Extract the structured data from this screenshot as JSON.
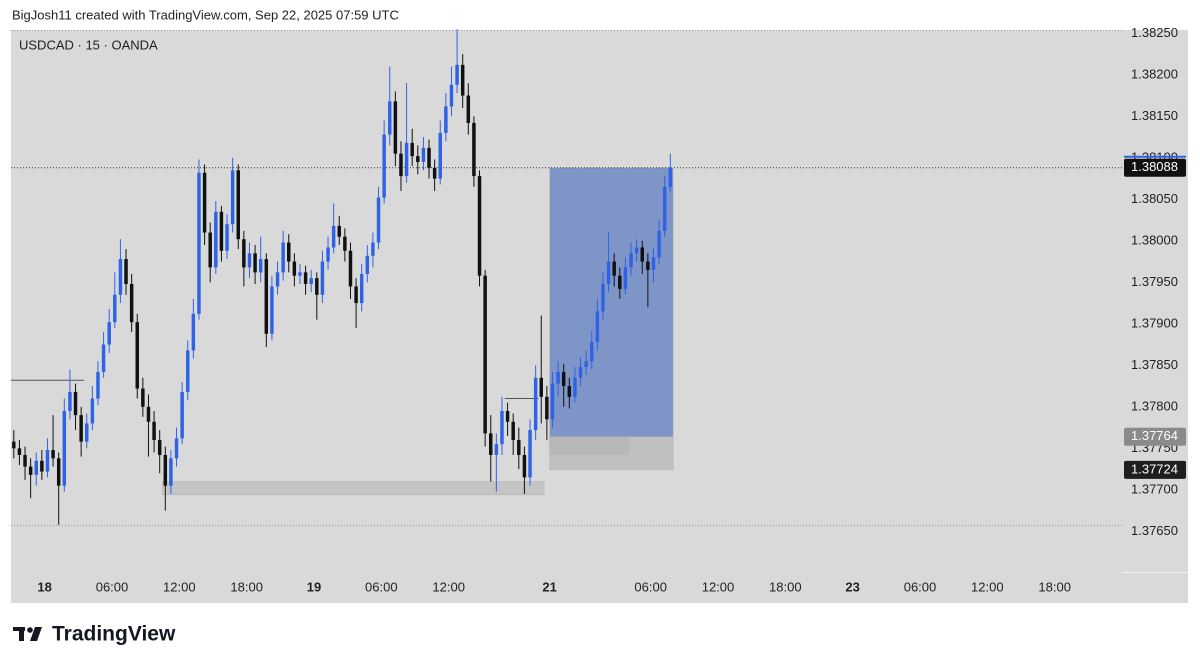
{
  "header": {
    "credit": "BigJosh11 created with TradingView.com, Sep 22, 2025 07:59 UTC"
  },
  "footer": {
    "brand": "TradingView"
  },
  "chart_data": {
    "type": "candlestick",
    "title": "USDCAD · 15 · OANDA",
    "up_color": "#2f63e6",
    "down_color": "#111111",
    "grid": false,
    "xlim": [
      0,
      198
    ],
    "ylim": [
      1.37601,
      1.38254
    ],
    "xticks": [
      {
        "value": 6,
        "label": "18"
      },
      {
        "value": 18,
        "label": "06:00"
      },
      {
        "value": 30,
        "label": "12:00"
      },
      {
        "value": 42,
        "label": "18:00"
      },
      {
        "value": 54,
        "label": "19"
      },
      {
        "value": 66,
        "label": "06:00"
      },
      {
        "value": 78,
        "label": "12:00"
      },
      {
        "value": 96,
        "label": "21"
      },
      {
        "value": 114,
        "label": "06:00"
      },
      {
        "value": 126,
        "label": "12:00"
      },
      {
        "value": 138,
        "label": "18:00"
      },
      {
        "value": 150,
        "label": "23"
      },
      {
        "value": 162,
        "label": "06:00"
      },
      {
        "value": 174,
        "label": "12:00"
      },
      {
        "value": 186,
        "label": "18:00"
      }
    ],
    "yticks": [
      {
        "value": 1.3825,
        "label": "1.38250"
      },
      {
        "value": 1.382,
        "label": "1.38200"
      },
      {
        "value": 1.3815,
        "label": "1.38150"
      },
      {
        "value": 1.381,
        "label": "1.38100"
      },
      {
        "value": 1.3805,
        "label": "1.38050"
      },
      {
        "value": 1.38,
        "label": "1.38000"
      },
      {
        "value": 1.3795,
        "label": "1.37950"
      },
      {
        "value": 1.379,
        "label": "1.37900"
      },
      {
        "value": 1.3785,
        "label": "1.37850"
      },
      {
        "value": 1.378,
        "label": "1.37800"
      },
      {
        "value": 1.3775,
        "label": "1.37750"
      },
      {
        "value": 1.377,
        "label": "1.37700"
      },
      {
        "value": 1.3765,
        "label": "1.37650"
      }
    ],
    "last_price": 1.38088,
    "levels": [
      {
        "value": 1.37764,
        "color": "#8a8a8a"
      },
      {
        "value": 1.37724,
        "color": "#1e1e1e"
      }
    ],
    "zones": [
      {
        "x": [
          27,
          95
        ],
        "y": [
          1.37694,
          1.3771
        ],
        "color": "#c4c4c4"
      },
      {
        "x": [
          96,
          118
        ],
        "y": [
          1.37724,
          1.37764
        ],
        "color": "#c0c0c0"
      },
      {
        "x": [
          96,
          110
        ],
        "y": [
          1.37743,
          1.37764
        ],
        "color": "#b8b8b8"
      },
      {
        "x": [
          96,
          118
        ],
        "y": [
          1.37764,
          1.38088
        ],
        "color": "#7f95c8"
      }
    ],
    "lines": [
      {
        "x": [
          0,
          13
        ],
        "y": 1.37832
      },
      {
        "x": [
          88,
          94
        ],
        "y": 1.3781
      }
    ],
    "ohlc": [
      [
        1.37758,
        1.37772,
        1.37738,
        1.3775
      ],
      [
        1.3775,
        1.3776,
        1.3773,
        1.37742
      ],
      [
        1.37742,
        1.37752,
        1.37712,
        1.37728
      ],
      [
        1.37728,
        1.37738,
        1.3769,
        1.37718
      ],
      [
        1.37718,
        1.37745,
        1.37705,
        1.37735
      ],
      [
        1.37735,
        1.37748,
        1.37712,
        1.37722
      ],
      [
        1.37722,
        1.37762,
        1.37715,
        1.37748
      ],
      [
        1.37748,
        1.3779,
        1.37728,
        1.37738
      ],
      [
        1.37738,
        1.37745,
        1.37658,
        1.37705
      ],
      [
        1.37705,
        1.3781,
        1.37698,
        1.37795
      ],
      [
        1.37795,
        1.37845,
        1.37785,
        1.37818
      ],
      [
        1.37818,
        1.37828,
        1.37772,
        1.3779
      ],
      [
        1.3779,
        1.378,
        1.3774,
        1.37758
      ],
      [
        1.37758,
        1.37792,
        1.3775,
        1.3778
      ],
      [
        1.3778,
        1.37825,
        1.37772,
        1.3781
      ],
      [
        1.3781,
        1.37855,
        1.37802,
        1.37842
      ],
      [
        1.37842,
        1.3789,
        1.37835,
        1.37875
      ],
      [
        1.37875,
        1.37918,
        1.37865,
        1.37902
      ],
      [
        1.37902,
        1.37962,
        1.37895,
        1.37935
      ],
      [
        1.37935,
        1.38002,
        1.37925,
        1.37978
      ],
      [
        1.37978,
        1.3799,
        1.37935,
        1.37948
      ],
      [
        1.37948,
        1.3796,
        1.3789,
        1.37902
      ],
      [
        1.37902,
        1.37912,
        1.3781,
        1.37822
      ],
      [
        1.37822,
        1.37835,
        1.37788,
        1.378
      ],
      [
        1.378,
        1.37815,
        1.3774,
        1.37782
      ],
      [
        1.37782,
        1.37795,
        1.37745,
        1.3776
      ],
      [
        1.3776,
        1.37772,
        1.3772,
        1.37742
      ],
      [
        1.37742,
        1.37752,
        1.37675,
        1.37705
      ],
      [
        1.37705,
        1.37748,
        1.37695,
        1.37738
      ],
      [
        1.37738,
        1.37775,
        1.37728,
        1.37762
      ],
      [
        1.37762,
        1.3783,
        1.37755,
        1.37818
      ],
      [
        1.37818,
        1.3788,
        1.37808,
        1.37868
      ],
      [
        1.37868,
        1.3793,
        1.37858,
        1.37912
      ],
      [
        1.37912,
        1.38098,
        1.37905,
        1.38082
      ],
      [
        1.38082,
        1.38092,
        1.37995,
        1.3801
      ],
      [
        1.3801,
        1.38022,
        1.3795,
        1.37968
      ],
      [
        1.37968,
        1.38048,
        1.3796,
        1.38035
      ],
      [
        1.38035,
        1.38042,
        1.37975,
        1.37988
      ],
      [
        1.37988,
        1.38032,
        1.37978,
        1.3802
      ],
      [
        1.3802,
        1.381,
        1.3801,
        1.38085
      ],
      [
        1.38085,
        1.38092,
        1.3799,
        1.38002
      ],
      [
        1.38002,
        1.38012,
        1.37945,
        1.37968
      ],
      [
        1.37968,
        1.37998,
        1.37955,
        1.37985
      ],
      [
        1.37985,
        1.37995,
        1.37948,
        1.37962
      ],
      [
        1.37962,
        1.38005,
        1.3795,
        1.37978
      ],
      [
        1.37978,
        1.37985,
        1.37872,
        1.37888
      ],
      [
        1.37888,
        1.37958,
        1.3788,
        1.37945
      ],
      [
        1.37945,
        1.37975,
        1.37935,
        1.37962
      ],
      [
        1.37962,
        1.38012,
        1.37952,
        1.37998
      ],
      [
        1.37998,
        1.38008,
        1.37962,
        1.37975
      ],
      [
        1.37975,
        1.37985,
        1.37945,
        1.37958
      ],
      [
        1.37958,
        1.37972,
        1.37948,
        1.37962
      ],
      [
        1.37962,
        1.3797,
        1.37935,
        1.37948
      ],
      [
        1.37948,
        1.37965,
        1.37938,
        1.37955
      ],
      [
        1.37955,
        1.37962,
        1.37905,
        1.37935
      ],
      [
        1.37935,
        1.37988,
        1.37925,
        1.37975
      ],
      [
        1.37975,
        1.38005,
        1.37965,
        1.37992
      ],
      [
        1.37992,
        1.38045,
        1.37985,
        1.38018
      ],
      [
        1.38018,
        1.3803,
        1.37995,
        1.38005
      ],
      [
        1.38005,
        1.38015,
        1.37975,
        1.37988
      ],
      [
        1.37988,
        1.37998,
        1.3793,
        1.37945
      ],
      [
        1.37945,
        1.37955,
        1.37895,
        1.37925
      ],
      [
        1.37925,
        1.37972,
        1.37915,
        1.3796
      ],
      [
        1.3796,
        1.37995,
        1.3795,
        1.37982
      ],
      [
        1.37982,
        1.3801,
        1.37968,
        1.37998
      ],
      [
        1.37998,
        1.38065,
        1.3799,
        1.38052
      ],
      [
        1.38052,
        1.38145,
        1.38045,
        1.38128
      ],
      [
        1.38128,
        1.3821,
        1.38115,
        1.38168
      ],
      [
        1.38168,
        1.3818,
        1.3809,
        1.38105
      ],
      [
        1.38105,
        1.3812,
        1.3806,
        1.38078
      ],
      [
        1.38078,
        1.3819,
        1.3807,
        1.38118
      ],
      [
        1.38118,
        1.38135,
        1.3809,
        1.38102
      ],
      [
        1.38102,
        1.38115,
        1.3808,
        1.38095
      ],
      [
        1.38095,
        1.38125,
        1.38085,
        1.38112
      ],
      [
        1.38112,
        1.38122,
        1.38075,
        1.38088
      ],
      [
        1.38088,
        1.38098,
        1.3806,
        1.38075
      ],
      [
        1.38075,
        1.38145,
        1.38068,
        1.3813
      ],
      [
        1.3813,
        1.38178,
        1.3812,
        1.38162
      ],
      [
        1.38162,
        1.3821,
        1.3815,
        1.38188
      ],
      [
        1.38188,
        1.38255,
        1.38178,
        1.38212
      ],
      [
        1.38212,
        1.38225,
        1.3816,
        1.38175
      ],
      [
        1.38175,
        1.3819,
        1.38128,
        1.38142
      ],
      [
        1.38142,
        1.3815,
        1.38065,
        1.38078
      ],
      [
        1.38078,
        1.38085,
        1.37945,
        1.37958
      ],
      [
        1.37958,
        1.37965,
        1.37752,
        1.37768
      ],
      [
        1.37768,
        1.3779,
        1.3771,
        1.37742
      ],
      [
        1.37742,
        1.37768,
        1.37698,
        1.37755
      ],
      [
        1.37755,
        1.37812,
        1.37742,
        1.37795
      ],
      [
        1.37795,
        1.37805,
        1.37765,
        1.37782
      ],
      [
        1.37782,
        1.37792,
        1.37742,
        1.3776
      ],
      [
        1.3776,
        1.37775,
        1.37725,
        1.37742
      ],
      [
        1.37742,
        1.37752,
        1.37695,
        1.37715
      ],
      [
        1.37715,
        1.37785,
        1.37705,
        1.37772
      ],
      [
        1.37772,
        1.3785,
        1.3776,
        1.37835
      ],
      [
        1.37835,
        1.3791,
        1.3778,
        1.37812
      ],
      [
        1.37812,
        1.37825,
        1.3776,
        1.37785
      ],
      [
        1.37785,
        1.37842,
        1.37775,
        1.37828
      ],
      [
        1.37828,
        1.37855,
        1.37812,
        1.37842
      ],
      [
        1.37842,
        1.37852,
        1.378,
        1.37825
      ],
      [
        1.37825,
        1.37835,
        1.37798,
        1.37812
      ],
      [
        1.37812,
        1.37848,
        1.37805,
        1.37835
      ],
      [
        1.37835,
        1.3786,
        1.37825,
        1.37848
      ],
      [
        1.37848,
        1.37868,
        1.37838,
        1.37855
      ],
      [
        1.37855,
        1.37892,
        1.37845,
        1.37878
      ],
      [
        1.37878,
        1.3793,
        1.37868,
        1.37915
      ],
      [
        1.37915,
        1.37962,
        1.37905,
        1.37948
      ],
      [
        1.37948,
        1.3801,
        1.37938,
        1.37975
      ],
      [
        1.37975,
        1.37985,
        1.37945,
        1.37958
      ],
      [
        1.37958,
        1.37968,
        1.3793,
        1.37942
      ],
      [
        1.37942,
        1.3798,
        1.37935,
        1.37968
      ],
      [
        1.37968,
        1.37998,
        1.37958,
        1.37985
      ],
      [
        1.37985,
        1.38002,
        1.37975,
        1.37992
      ],
      [
        1.37992,
        1.38,
        1.3796,
        1.37975
      ],
      [
        1.37975,
        1.37985,
        1.3792,
        1.37965
      ],
      [
        1.37965,
        1.37992,
        1.3795,
        1.3798
      ],
      [
        1.3798,
        1.38025,
        1.37972,
        1.38012
      ],
      [
        1.38012,
        1.38078,
        1.38005,
        1.38065
      ],
      [
        1.38065,
        1.38105,
        1.38058,
        1.38088
      ]
    ]
  }
}
